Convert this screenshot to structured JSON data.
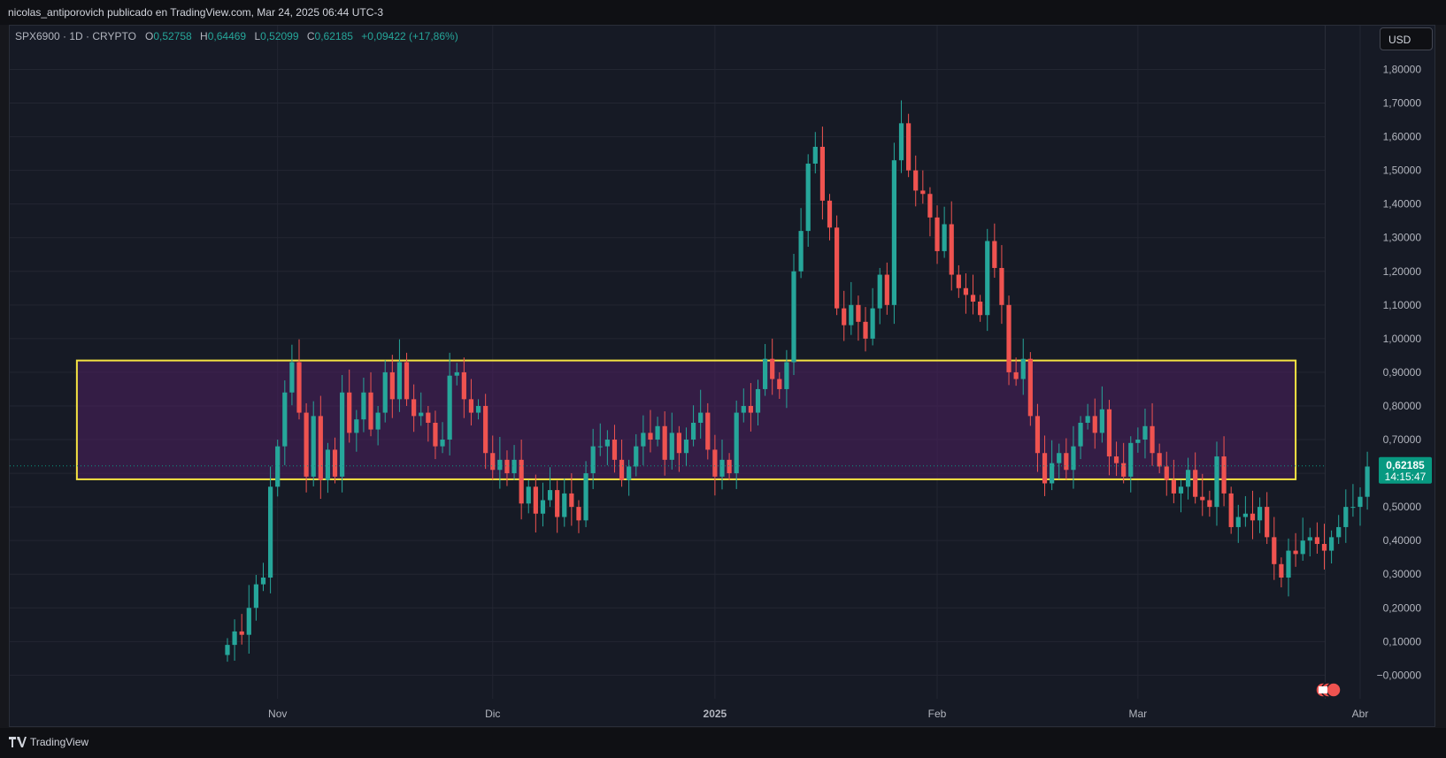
{
  "header": {
    "attribution": "nicolas_antiporovich publicado en TradingView.com, Mar 24, 2025 06:44 UTC-3"
  },
  "legend": {
    "symbol": "SPX6900 · 1D · CRYPTO",
    "open_label": "O",
    "open": "0,52758",
    "high_label": "H",
    "high": "0,64469",
    "low_label": "L",
    "low": "0,52099",
    "close_label": "C",
    "close": "0,62185",
    "change": "+0,09422 (+17,86%)"
  },
  "currency": "USD",
  "footer": {
    "brand": "TradingView",
    "logo_icon": "tradingview-logo-icon"
  },
  "colors": {
    "up": "#26a69a",
    "down": "#ef5350",
    "zone_border": "#f5e342",
    "zone_fill": "#4a1f5c",
    "price_tag": "#089981"
  },
  "chart_data": {
    "type": "candlestick",
    "y_axis_labels": [
      "1,80000",
      "1,70000",
      "1,60000",
      "1,50000",
      "1,40000",
      "1,30000",
      "1,20000",
      "1,10000",
      "1,00000",
      "0,90000",
      "0,80000",
      "0,70000",
      "0,60000",
      "0,50000",
      "0,40000",
      "0,30000",
      "0,20000",
      "0,10000",
      "−0,00000"
    ],
    "y_axis_values": [
      1.8,
      1.7,
      1.6,
      1.5,
      1.4,
      1.3,
      1.2,
      1.1,
      1.0,
      0.9,
      0.8,
      0.7,
      0.6,
      0.5,
      0.4,
      0.3,
      0.2,
      0.1,
      0.0
    ],
    "ylim": [
      -0.07,
      1.93
    ],
    "x_axis_labels": [
      {
        "label": "Nov",
        "day": 26
      },
      {
        "label": "Dic",
        "day": 56
      },
      {
        "label": "2025",
        "day": 87
      },
      {
        "label": "Feb",
        "day": 118
      },
      {
        "label": "Mar",
        "day": 146
      },
      {
        "label": "Abr",
        "day": 177
      }
    ],
    "first_day": "2024-10-06",
    "last_price": {
      "value": 0.62185,
      "label": "0,62185",
      "countdown": "14:15:47"
    },
    "zone": {
      "top": 0.935,
      "bottom": 0.582,
      "start_day": -2,
      "end_day": 168
    },
    "closes": [
      0.09,
      0.13,
      0.12,
      0.2,
      0.27,
      0.29,
      0.56,
      0.68,
      0.84,
      0.93,
      0.78,
      0.59,
      0.77,
      0.58,
      0.67,
      0.59,
      0.84,
      0.72,
      0.76,
      0.84,
      0.73,
      0.78,
      0.9,
      0.82,
      0.93,
      0.82,
      0.77,
      0.78,
      0.75,
      0.68,
      0.7,
      0.89,
      0.9,
      0.82,
      0.78,
      0.8,
      0.66,
      0.61,
      0.64,
      0.6,
      0.64,
      0.51,
      0.56,
      0.48,
      0.52,
      0.55,
      0.47,
      0.54,
      0.5,
      0.46,
      0.6,
      0.68,
      0.68,
      0.7,
      0.64,
      0.58,
      0.62,
      0.68,
      0.72,
      0.7,
      0.74,
      0.64,
      0.72,
      0.66,
      0.7,
      0.75,
      0.78,
      0.67,
      0.59,
      0.64,
      0.6,
      0.78,
      0.8,
      0.78,
      0.85,
      0.94,
      0.88,
      0.85,
      0.93,
      1.2,
      1.32,
      1.52,
      1.57,
      1.41,
      1.33,
      1.09,
      1.04,
      1.1,
      1.05,
      1.0,
      1.09,
      1.19,
      1.1,
      1.53,
      1.64,
      1.5,
      1.44,
      1.43,
      1.36,
      1.26,
      1.34,
      1.19,
      1.15,
      1.13,
      1.11,
      1.07,
      1.29,
      1.21,
      1.1,
      0.9,
      0.88,
      0.94,
      0.77,
      0.66,
      0.57,
      0.63,
      0.66,
      0.61,
      0.68,
      0.75,
      0.77,
      0.72,
      0.79,
      0.65,
      0.63,
      0.59,
      0.69,
      0.7,
      0.74,
      0.66,
      0.62,
      0.58,
      0.54,
      0.56,
      0.61,
      0.53,
      0.52,
      0.5,
      0.65,
      0.54,
      0.44,
      0.47,
      0.48,
      0.46,
      0.5,
      0.41,
      0.33,
      0.29,
      0.37,
      0.36,
      0.4,
      0.41,
      0.39,
      0.37,
      0.41,
      0.44,
      0.5,
      0.5,
      0.53,
      0.62
    ],
    "opens": [
      0.06,
      0.09,
      0.13,
      0.12,
      0.2,
      0.27,
      0.29,
      0.56,
      0.68,
      0.84,
      0.93,
      0.78,
      0.59,
      0.77,
      0.58,
      0.67,
      0.59,
      0.84,
      0.72,
      0.76,
      0.84,
      0.73,
      0.78,
      0.9,
      0.82,
      0.93,
      0.82,
      0.77,
      0.78,
      0.75,
      0.68,
      0.7,
      0.89,
      0.9,
      0.82,
      0.78,
      0.8,
      0.66,
      0.61,
      0.64,
      0.6,
      0.64,
      0.51,
      0.56,
      0.48,
      0.52,
      0.55,
      0.47,
      0.54,
      0.5,
      0.46,
      0.6,
      0.68,
      0.68,
      0.7,
      0.64,
      0.58,
      0.62,
      0.68,
      0.72,
      0.7,
      0.74,
      0.64,
      0.72,
      0.66,
      0.7,
      0.75,
      0.78,
      0.67,
      0.59,
      0.64,
      0.6,
      0.78,
      0.8,
      0.78,
      0.85,
      0.94,
      0.88,
      0.85,
      0.93,
      1.2,
      1.32,
      1.52,
      1.57,
      1.41,
      1.33,
      1.09,
      1.04,
      1.1,
      1.05,
      1.0,
      1.09,
      1.19,
      1.1,
      1.53,
      1.64,
      1.5,
      1.44,
      1.43,
      1.36,
      1.26,
      1.34,
      1.19,
      1.15,
      1.13,
      1.11,
      1.07,
      1.29,
      1.21,
      1.1,
      0.9,
      0.88,
      0.94,
      0.77,
      0.66,
      0.57,
      0.63,
      0.66,
      0.61,
      0.68,
      0.75,
      0.77,
      0.72,
      0.79,
      0.65,
      0.63,
      0.59,
      0.69,
      0.7,
      0.74,
      0.66,
      0.62,
      0.58,
      0.54,
      0.56,
      0.61,
      0.53,
      0.52,
      0.5,
      0.65,
      0.54,
      0.44,
      0.47,
      0.48,
      0.46,
      0.5,
      0.41,
      0.33,
      0.29,
      0.37,
      0.36,
      0.4,
      0.41,
      0.39,
      0.37,
      0.41,
      0.44,
      0.5,
      0.5,
      0.53
    ]
  }
}
